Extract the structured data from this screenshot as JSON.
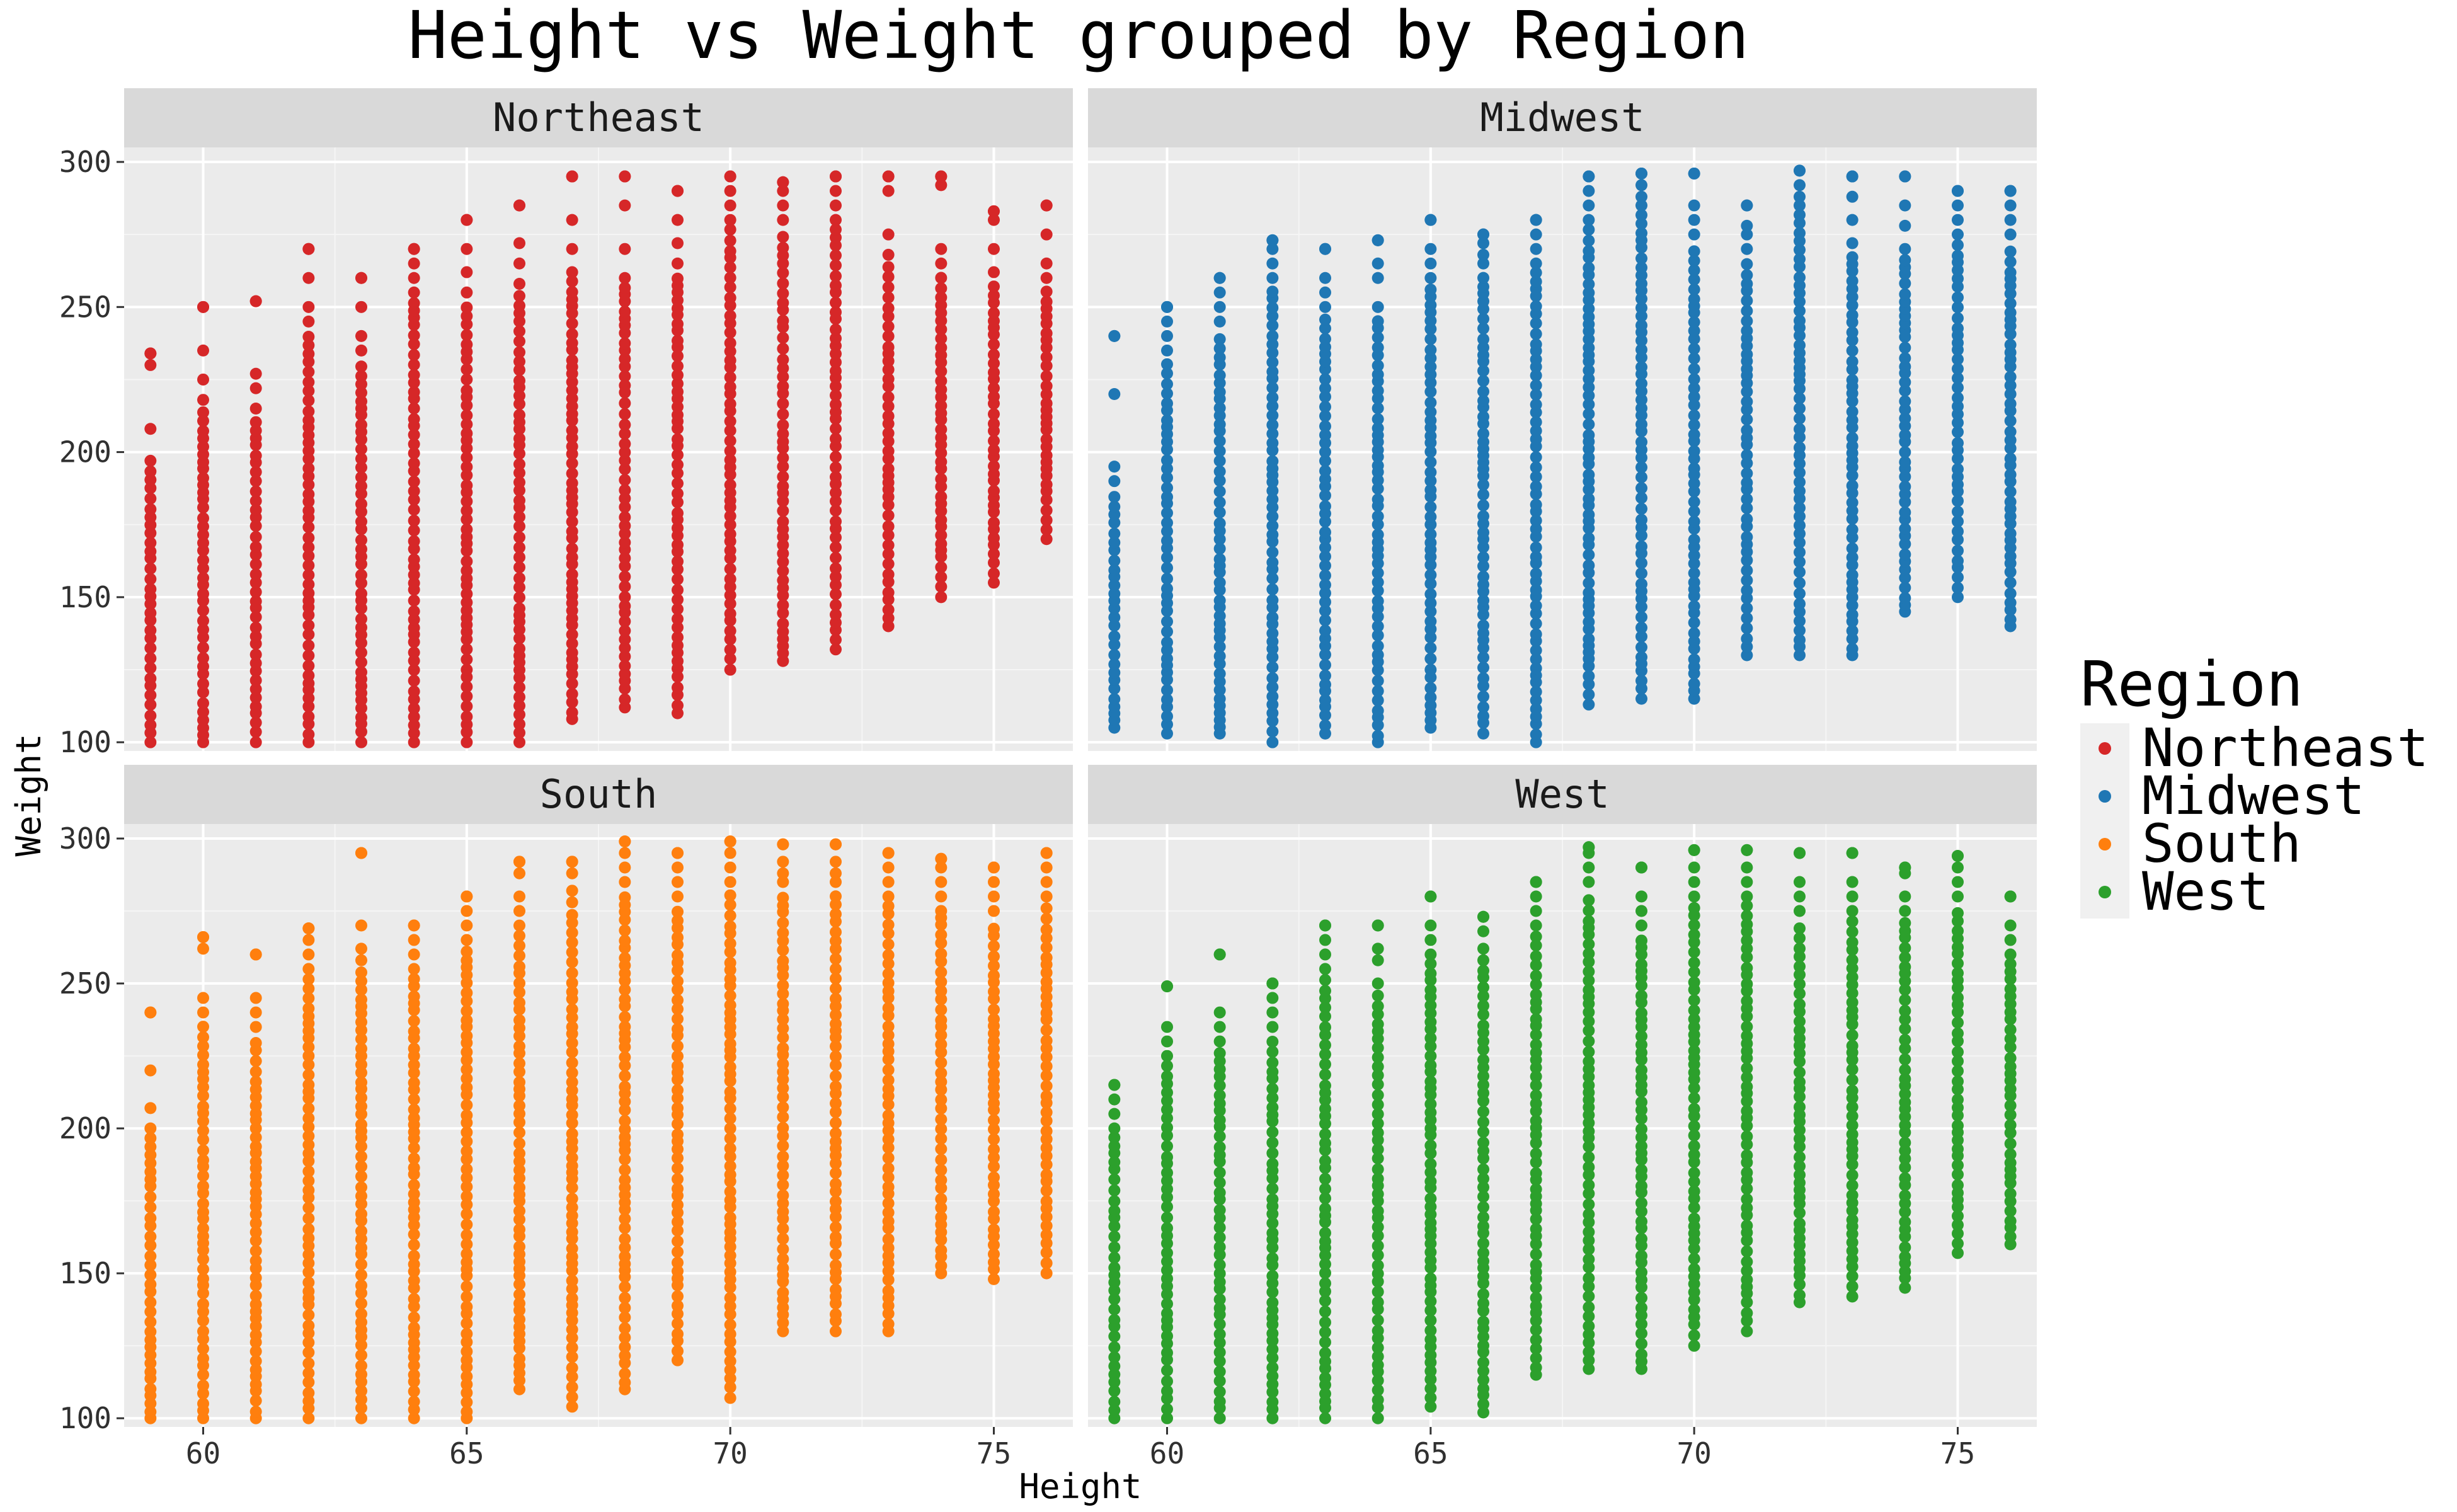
{
  "chart_data": {
    "type": "scatter",
    "title": "Height vs Weight grouped by Region",
    "xlabel": "Height",
    "ylabel": "Weight",
    "xlim": [
      58.5,
      76.5
    ],
    "ylim": [
      97,
      305
    ],
    "xticks": [
      60,
      65,
      70,
      75
    ],
    "yticks": [
      100,
      150,
      200,
      250,
      300
    ],
    "facet_layout": "2x2 grid (facet_wrap by Region)",
    "grid": true,
    "legend": {
      "title": "Region",
      "placement": "right",
      "entries": [
        "Northeast",
        "Midwest",
        "South",
        "West"
      ]
    },
    "panels": [
      {
        "name": "Northeast",
        "color": "#d62728",
        "columns": [
          {
            "x": 59,
            "min": 100,
            "max": 234,
            "top": [
              234,
              230,
              208,
              197
            ]
          },
          {
            "x": 60,
            "min": 100,
            "max": 250,
            "top": [
              250,
              235,
              225,
              218
            ]
          },
          {
            "x": 61,
            "min": 100,
            "max": 252,
            "top": [
              252,
              227,
              222,
              215
            ]
          },
          {
            "x": 62,
            "min": 100,
            "max": 270,
            "top": [
              270,
              260,
              250,
              245
            ]
          },
          {
            "x": 63,
            "min": 100,
            "max": 260,
            "top": [
              260,
              250,
              240,
              235
            ]
          },
          {
            "x": 64,
            "min": 100,
            "max": 270,
            "top": [
              270,
              265,
              260,
              255
            ]
          },
          {
            "x": 65,
            "min": 100,
            "max": 280,
            "top": [
              280,
              270,
              262,
              255
            ]
          },
          {
            "x": 66,
            "min": 100,
            "max": 285,
            "top": [
              285,
              272,
              265,
              258
            ]
          },
          {
            "x": 67,
            "min": 108,
            "max": 295,
            "top": [
              295,
              280,
              270,
              262
            ]
          },
          {
            "x": 68,
            "min": 112,
            "max": 295,
            "top": [
              295,
              285,
              270,
              260
            ]
          },
          {
            "x": 69,
            "min": 110,
            "max": 290,
            "top": [
              290,
              280,
              272,
              265
            ]
          },
          {
            "x": 70,
            "min": 125,
            "max": 295,
            "top": [
              295,
              290,
              285,
              280
            ]
          },
          {
            "x": 71,
            "min": 128,
            "max": 293,
            "top": [
              293,
              290,
              285,
              280
            ]
          },
          {
            "x": 72,
            "min": 132,
            "max": 295,
            "top": [
              295,
              290,
              285,
              280
            ]
          },
          {
            "x": 73,
            "min": 140,
            "max": 295,
            "top": [
              295,
              290,
              275,
              268
            ]
          },
          {
            "x": 74,
            "min": 150,
            "max": 295,
            "top": [
              295,
              292,
              270,
              265
            ]
          },
          {
            "x": 75,
            "min": 155,
            "max": 283,
            "top": [
              283,
              280,
              270,
              262
            ]
          },
          {
            "x": 76,
            "min": 170,
            "max": 285,
            "top": [
              285,
              275,
              265,
              260
            ]
          }
        ]
      },
      {
        "name": "Midwest",
        "color": "#1f77b4",
        "columns": [
          {
            "x": 59,
            "min": 105,
            "max": 240,
            "top": [
              240,
              220,
              195,
              190
            ]
          },
          {
            "x": 60,
            "min": 103,
            "max": 250,
            "top": [
              250,
              245,
              240,
              235
            ]
          },
          {
            "x": 61,
            "min": 103,
            "max": 260,
            "top": [
              260,
              255,
              250,
              245
            ]
          },
          {
            "x": 62,
            "min": 100,
            "max": 273,
            "top": [
              273,
              270,
              265,
              260
            ]
          },
          {
            "x": 63,
            "min": 103,
            "max": 270,
            "top": [
              270,
              260,
              255,
              250
            ]
          },
          {
            "x": 64,
            "min": 100,
            "max": 273,
            "top": [
              273,
              265,
              260,
              250
            ]
          },
          {
            "x": 65,
            "min": 105,
            "max": 280,
            "top": [
              280,
              270,
              265,
              260
            ]
          },
          {
            "x": 66,
            "min": 103,
            "max": 275,
            "top": [
              275,
              272,
              268,
              265
            ]
          },
          {
            "x": 67,
            "min": 100,
            "max": 280,
            "top": [
              280,
              275,
              270,
              265
            ]
          },
          {
            "x": 68,
            "min": 113,
            "max": 295,
            "top": [
              295,
              290,
              285,
              280
            ]
          },
          {
            "x": 69,
            "min": 115,
            "max": 296,
            "top": [
              296,
              292,
              288,
              285
            ]
          },
          {
            "x": 70,
            "min": 115,
            "max": 296,
            "top": [
              296,
              285,
              280,
              275
            ]
          },
          {
            "x": 71,
            "min": 130,
            "max": 285,
            "top": [
              285,
              278,
              275,
              270
            ]
          },
          {
            "x": 72,
            "min": 130,
            "max": 297,
            "top": [
              297,
              292,
              288,
              285
            ]
          },
          {
            "x": 73,
            "min": 130,
            "max": 295,
            "top": [
              295,
              288,
              280,
              272
            ]
          },
          {
            "x": 74,
            "min": 145,
            "max": 295,
            "top": [
              295,
              285,
              278,
              270
            ]
          },
          {
            "x": 75,
            "min": 150,
            "max": 290,
            "top": [
              290,
              285,
              280,
              275
            ]
          },
          {
            "x": 76,
            "min": 140,
            "max": 290,
            "top": [
              290,
              285,
              280,
              275
            ]
          }
        ]
      },
      {
        "name": "South",
        "color": "#ff7f0e",
        "columns": [
          {
            "x": 59,
            "min": 100,
            "max": 240,
            "top": [
              240,
              220,
              207,
              200
            ]
          },
          {
            "x": 60,
            "min": 100,
            "max": 266,
            "top": [
              266,
              262,
              245,
              240
            ]
          },
          {
            "x": 61,
            "min": 100,
            "max": 260,
            "top": [
              260,
              245,
              240,
              235
            ]
          },
          {
            "x": 62,
            "min": 100,
            "max": 269,
            "top": [
              269,
              265,
              260,
              255
            ]
          },
          {
            "x": 63,
            "min": 100,
            "max": 295,
            "top": [
              295,
              270,
              262,
              258
            ]
          },
          {
            "x": 64,
            "min": 100,
            "max": 270,
            "top": [
              270,
              265,
              260,
              255
            ]
          },
          {
            "x": 65,
            "min": 100,
            "max": 280,
            "top": [
              280,
              275,
              270,
              265
            ]
          },
          {
            "x": 66,
            "min": 110,
            "max": 292,
            "top": [
              292,
              288,
              280,
              275
            ]
          },
          {
            "x": 67,
            "min": 104,
            "max": 292,
            "top": [
              292,
              288,
              282,
              278
            ]
          },
          {
            "x": 68,
            "min": 110,
            "max": 299,
            "top": [
              299,
              295,
              290,
              285
            ]
          },
          {
            "x": 69,
            "min": 120,
            "max": 295,
            "top": [
              295,
              290,
              285,
              280
            ]
          },
          {
            "x": 70,
            "min": 107,
            "max": 299,
            "top": [
              299,
              295,
              290,
              285
            ]
          },
          {
            "x": 71,
            "min": 130,
            "max": 298,
            "top": [
              298,
              292,
              288,
              285
            ]
          },
          {
            "x": 72,
            "min": 130,
            "max": 298,
            "top": [
              298,
              292,
              288,
              285
            ]
          },
          {
            "x": 73,
            "min": 130,
            "max": 295,
            "top": [
              295,
              290,
              285,
              280
            ]
          },
          {
            "x": 74,
            "min": 150,
            "max": 293,
            "top": [
              293,
              290,
              285,
              280
            ]
          },
          {
            "x": 75,
            "min": 148,
            "max": 290,
            "top": [
              290,
              285,
              280,
              275
            ]
          },
          {
            "x": 76,
            "min": 150,
            "max": 295,
            "top": [
              295,
              290,
              285,
              280
            ]
          }
        ]
      },
      {
        "name": "West",
        "color": "#2ca02c",
        "columns": [
          {
            "x": 59,
            "min": 100,
            "max": 215,
            "top": [
              215,
              210,
              205,
              200
            ]
          },
          {
            "x": 60,
            "min": 100,
            "max": 249,
            "top": [
              249,
              235,
              230,
              225
            ]
          },
          {
            "x": 61,
            "min": 100,
            "max": 260,
            "top": [
              260,
              240,
              235,
              230
            ]
          },
          {
            "x": 62,
            "min": 100,
            "max": 250,
            "top": [
              250,
              245,
              240,
              235
            ]
          },
          {
            "x": 63,
            "min": 100,
            "max": 270,
            "top": [
              270,
              265,
              260,
              255
            ]
          },
          {
            "x": 64,
            "min": 100,
            "max": 270,
            "top": [
              270,
              262,
              258,
              250
            ]
          },
          {
            "x": 65,
            "min": 104,
            "max": 280,
            "top": [
              280,
              270,
              265,
              260
            ]
          },
          {
            "x": 66,
            "min": 102,
            "max": 273,
            "top": [
              273,
              268,
              262,
              258
            ]
          },
          {
            "x": 67,
            "min": 115,
            "max": 285,
            "top": [
              285,
              280,
              275,
              270
            ]
          },
          {
            "x": 68,
            "min": 117,
            "max": 297,
            "top": [
              297,
              295,
              290,
              285
            ]
          },
          {
            "x": 69,
            "min": 117,
            "max": 290,
            "top": [
              290,
              280,
              275,
              270
            ]
          },
          {
            "x": 70,
            "min": 125,
            "max": 296,
            "top": [
              296,
              290,
              285,
              280
            ]
          },
          {
            "x": 71,
            "min": 130,
            "max": 296,
            "top": [
              296,
              290,
              285,
              280
            ]
          },
          {
            "x": 72,
            "min": 140,
            "max": 295,
            "top": [
              295,
              285,
              280,
              275
            ]
          },
          {
            "x": 73,
            "min": 142,
            "max": 295,
            "top": [
              295,
              285,
              280,
              275
            ]
          },
          {
            "x": 74,
            "min": 145,
            "max": 290,
            "top": [
              290,
              288,
              280,
              275
            ]
          },
          {
            "x": 75,
            "min": 157,
            "max": 294,
            "top": [
              294,
              290,
              285,
              280
            ]
          },
          {
            "x": 76,
            "min": 160,
            "max": 280,
            "top": [
              280,
              270,
              265,
              260
            ]
          }
        ]
      }
    ]
  }
}
